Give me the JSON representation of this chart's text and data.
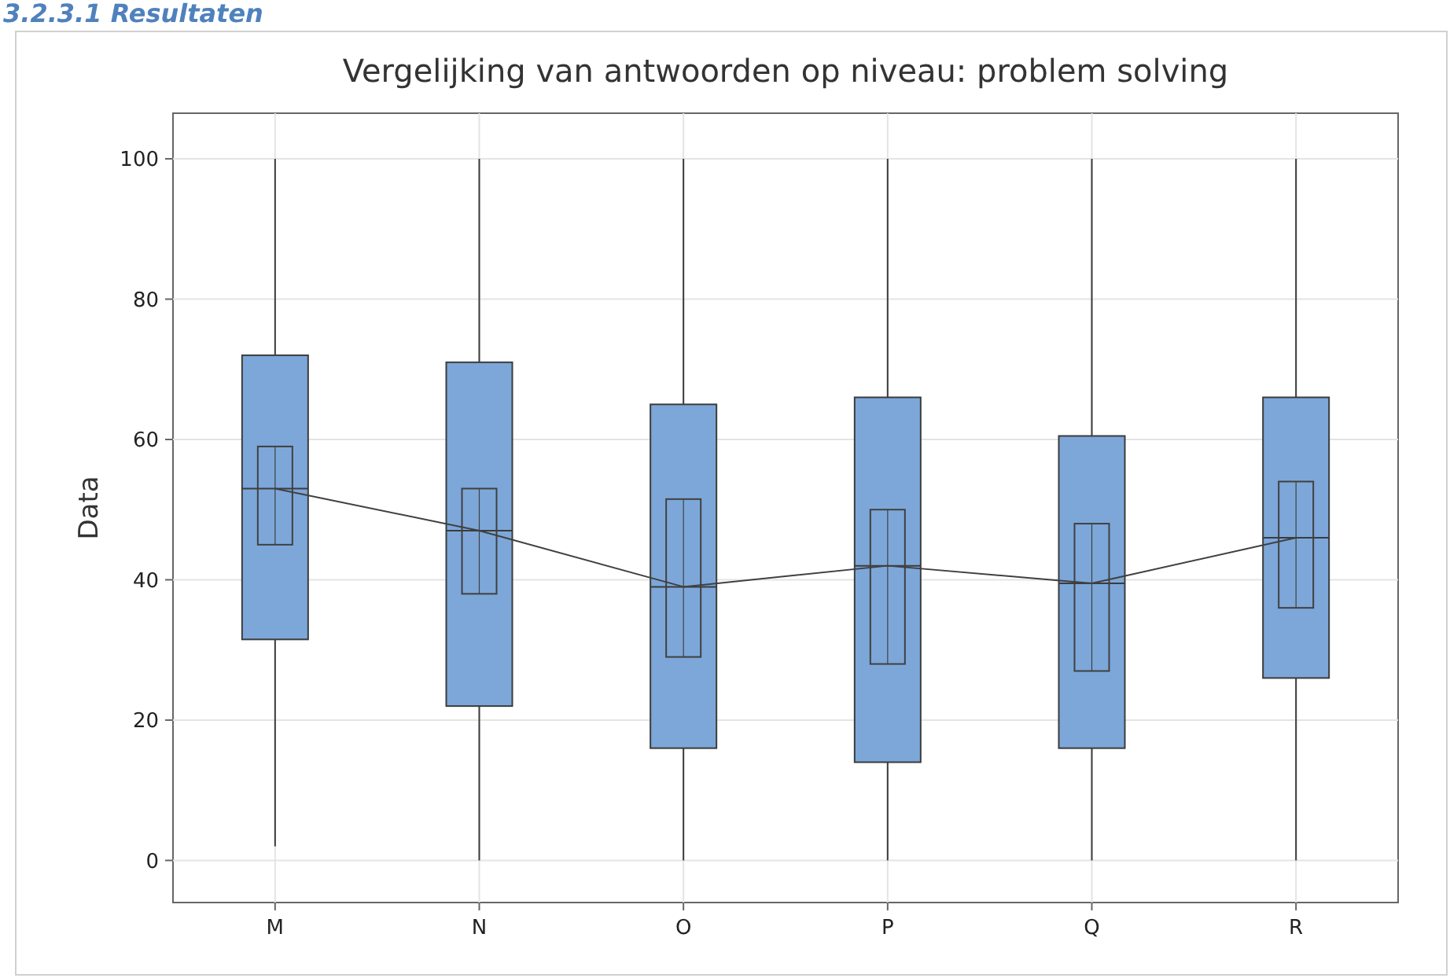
{
  "chart_data": {
    "type": "box",
    "title": "Vergelijking van antwoorden op niveau: problem solving",
    "ylabel": "Data",
    "annotations": [
      "3.2.3.1 Resultaten"
    ],
    "categories": [
      "M",
      "N",
      "O",
      "P",
      "Q",
      "R"
    ],
    "series": [
      {
        "color": "#7da7d9",
        "boxes": [
          {
            "low": 2,
            "q1": 31.5,
            "median": 53,
            "q3": 72,
            "high": 100
          },
          {
            "low": 0,
            "q1": 22,
            "median": 47,
            "q3": 71,
            "high": 100
          },
          {
            "low": 0,
            "q1": 16,
            "median": 39,
            "q3": 65,
            "high": 100
          },
          {
            "low": 0,
            "q1": 14,
            "median": 42,
            "q3": 66,
            "high": 100
          },
          {
            "low": 0,
            "q1": 16,
            "median": 39.5,
            "q3": 60.5,
            "high": 100
          },
          {
            "low": 0,
            "q1": 26,
            "median": 46,
            "q3": 66,
            "high": 100
          }
        ]
      },
      {
        "type": "line",
        "color": "#404040",
        "values": [
          53,
          47,
          39,
          42,
          39.5,
          46
        ],
        "errors": [
          [
            45,
            59
          ],
          [
            38,
            53
          ],
          [
            29,
            51.5
          ],
          [
            28,
            50
          ],
          [
            27,
            48
          ],
          [
            36,
            54
          ]
        ]
      }
    ],
    "ylim": [
      -6,
      106.5
    ],
    "yticks": [
      0,
      20,
      40,
      60,
      80,
      100
    ],
    "grid": true
  }
}
